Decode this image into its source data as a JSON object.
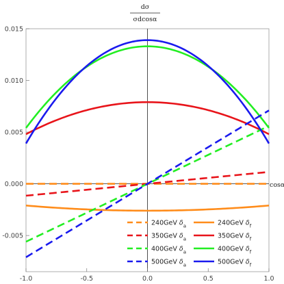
{
  "chart_data": {
    "type": "line",
    "y_label_numerator": "dσ",
    "y_label_denominator": "σdcosα",
    "x_label": "cosα",
    "xlim": [
      -1.0,
      1.0
    ],
    "ylim": [
      -0.0085,
      0.015
    ],
    "x_ticks": [
      {
        "value": -1.0,
        "label": "-1.0"
      },
      {
        "value": -0.5,
        "label": "-0.5"
      },
      {
        "value": 0.0,
        "label": "0.0"
      },
      {
        "value": 0.5,
        "label": "0.5"
      },
      {
        "value": 1.0,
        "label": "1.0"
      }
    ],
    "y_ticks": [
      {
        "value": -0.005,
        "label": "-0.005"
      },
      {
        "value": 0.0,
        "label": "0.000"
      },
      {
        "value": 0.005,
        "label": "0.005"
      },
      {
        "value": 0.01,
        "label": "0.010"
      },
      {
        "value": 0.015,
        "label": "0.015"
      }
    ],
    "grid": false,
    "legend_position": "bottom-right",
    "series": [
      {
        "energy": "240GeV",
        "symbol": "δ",
        "sub": "a",
        "color": "#ff8c1a",
        "style": "dashed",
        "form": "linear",
        "slope": 0.0,
        "intercept": 0.0
      },
      {
        "energy": "240GeV",
        "symbol": "δ",
        "sub": "f",
        "color": "#ff8c1a",
        "style": "solid",
        "form": "parabola",
        "peak": -0.0026,
        "end": -0.0021
      },
      {
        "energy": "350GeV",
        "symbol": "δ",
        "sub": "a",
        "color": "#e8141a",
        "style": "dashed",
        "form": "linear",
        "slope": 0.00115,
        "intercept": 0.0
      },
      {
        "energy": "350GeV",
        "symbol": "δ",
        "sub": "f",
        "color": "#e8141a",
        "style": "solid",
        "form": "parabola",
        "peak": 0.0079,
        "end": 0.0048
      },
      {
        "energy": "400GeV",
        "symbol": "δ",
        "sub": "a",
        "color": "#22ee22",
        "style": "dashed",
        "form": "linear",
        "slope": 0.0056,
        "intercept": 0.0
      },
      {
        "energy": "400GeV",
        "symbol": "δ",
        "sub": "f",
        "color": "#22ee22",
        "style": "solid",
        "form": "parabola",
        "peak": 0.0133,
        "end": 0.0054
      },
      {
        "energy": "500GeV",
        "symbol": "δ",
        "sub": "a",
        "color": "#1a1aee",
        "style": "dashed",
        "form": "linear",
        "slope": 0.0071,
        "intercept": 0.0
      },
      {
        "energy": "500GeV",
        "symbol": "δ",
        "sub": "f",
        "color": "#1a1aee",
        "style": "solid",
        "form": "parabola",
        "peak": 0.0139,
        "end": 0.0039
      }
    ]
  }
}
